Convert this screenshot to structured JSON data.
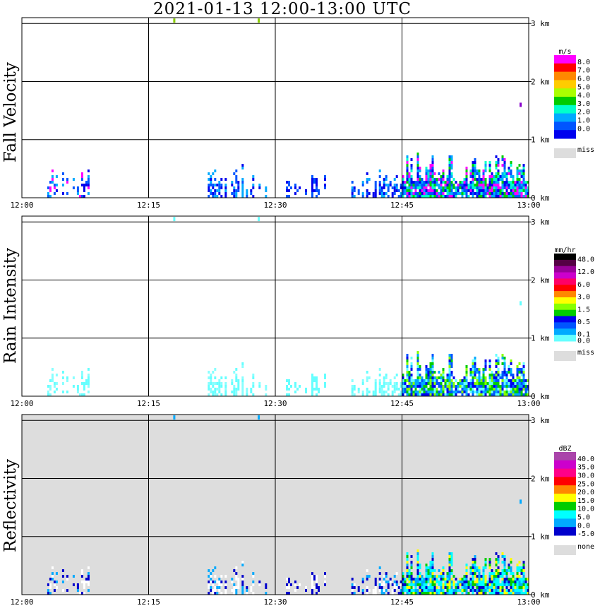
{
  "title": "2021-01-13   12:00-13:00 UTC",
  "x_ticks": [
    "12:00",
    "12:15",
    "12:30",
    "12:45",
    "13:00"
  ],
  "y_ticks": [
    "3 km",
    "2 km",
    "1 km",
    "0 km"
  ],
  "chart_data": [
    {
      "type": "heatmap",
      "ylabel": "Fall Velocity",
      "background": "#ffffff",
      "unit": "m/s",
      "colorbar": {
        "labels": [
          "8.0",
          "7.0",
          "6.0",
          "5.0",
          "4.0",
          "3.0",
          "2.0",
          "1.0",
          "0.0"
        ],
        "colors": [
          "#ff00ff",
          "#ff0000",
          "#ff8800",
          "#ffcc00",
          "#aaff00",
          "#00cc00",
          "#00ffcc",
          "#00aaff",
          "#0055ff",
          "#0000ee"
        ],
        "missing_label": "miss",
        "missing_color": "#dddddd"
      },
      "xlim": [
        "12:00",
        "13:00"
      ],
      "ylim_km": [
        0,
        3.1
      ],
      "stray_points": [
        {
          "time": "12:18",
          "height_km": 3.05,
          "color": "#88cc00"
        },
        {
          "time": "12:28",
          "height_km": 3.05,
          "color": "#88cc00"
        },
        {
          "time": "12:59",
          "height_km": 1.6,
          "color": "#8800cc"
        }
      ],
      "echo_segments": [
        {
          "start": "12:03",
          "end": "12:08",
          "top_km": 0.55,
          "palette": [
            "#0000ee",
            "#0055ff",
            "#00aaff",
            "#ff00ff"
          ]
        },
        {
          "start": "12:22",
          "end": "12:29",
          "top_km": 0.6,
          "palette": [
            "#0000ee",
            "#0055ff",
            "#00aaff"
          ]
        },
        {
          "start": "12:31",
          "end": "12:36",
          "top_km": 0.5,
          "palette": [
            "#0000ee",
            "#0055ff"
          ]
        },
        {
          "start": "12:39",
          "end": "12:45",
          "top_km": 0.55,
          "palette": [
            "#0000ee",
            "#0055ff",
            "#00aaff"
          ]
        },
        {
          "start": "12:45",
          "end": "13:00",
          "top_km": 0.8,
          "palette": [
            "#0000ee",
            "#0055ff",
            "#00aaff",
            "#00ffcc",
            "#00cc00",
            "#ff00ff"
          ]
        }
      ]
    },
    {
      "type": "heatmap",
      "ylabel": "Rain Intensity",
      "background": "#ffffff",
      "unit": "mm/hr",
      "colorbar": {
        "labels": [
          "48.0",
          "",
          "12.0",
          "",
          "6.0",
          "",
          "3.0",
          "",
          "1.5",
          "",
          "0.5",
          "",
          "0.1",
          "0.0"
        ],
        "colors": [
          "#000000",
          "#550044",
          "#990099",
          "#cc00cc",
          "#ff0066",
          "#ff0000",
          "#ff8800",
          "#ffff00",
          "#88ff00",
          "#00cc00",
          "#0000ee",
          "#0055ff",
          "#00aaff",
          "#66ffff"
        ],
        "missing_label": "miss",
        "missing_color": "#dddddd"
      },
      "xlim": [
        "12:00",
        "13:00"
      ],
      "ylim_km": [
        0,
        3.1
      ],
      "stray_points": [
        {
          "time": "12:18",
          "height_km": 3.05,
          "color": "#66ffff"
        },
        {
          "time": "12:28",
          "height_km": 3.05,
          "color": "#66ffff"
        },
        {
          "time": "12:59",
          "height_km": 1.6,
          "color": "#66ffff"
        }
      ],
      "echo_segments": [
        {
          "start": "12:03",
          "end": "12:08",
          "top_km": 0.55,
          "palette": [
            "#66ffff",
            "#88ffff"
          ]
        },
        {
          "start": "12:22",
          "end": "12:29",
          "top_km": 0.6,
          "palette": [
            "#66ffff",
            "#88ffff"
          ]
        },
        {
          "start": "12:31",
          "end": "12:36",
          "top_km": 0.5,
          "palette": [
            "#66ffff"
          ]
        },
        {
          "start": "12:39",
          "end": "12:45",
          "top_km": 0.55,
          "palette": [
            "#66ffff",
            "#88ffff"
          ]
        },
        {
          "start": "12:45",
          "end": "13:00",
          "top_km": 0.8,
          "palette": [
            "#66ffff",
            "#00aaff",
            "#0055ff",
            "#0000ee",
            "#88ff00",
            "#00cc00"
          ]
        }
      ]
    },
    {
      "type": "heatmap",
      "ylabel": "Reflectivity",
      "background": "#dddddd",
      "unit": "dBZ",
      "colorbar": {
        "labels": [
          "40.0",
          "35.0",
          "30.0",
          "25.0",
          "20.0",
          "15.0",
          "10.0",
          "5.0",
          "0.0",
          "-5.0"
        ],
        "colors": [
          "#aa44aa",
          "#cc00cc",
          "#ff0088",
          "#ff0000",
          "#ff8800",
          "#ffff00",
          "#00cc00",
          "#00ffff",
          "#00aaff",
          "#0000cc"
        ],
        "missing_label": "none",
        "missing_color": "#dddddd"
      },
      "xlim": [
        "12:00",
        "13:00"
      ],
      "ylim_km": [
        0,
        3.1
      ],
      "stray_points": [
        {
          "time": "12:18",
          "height_km": 3.05,
          "color": "#00aaff"
        },
        {
          "time": "12:28",
          "height_km": 3.05,
          "color": "#00aaff"
        },
        {
          "time": "12:59",
          "height_km": 1.6,
          "color": "#00aaff"
        }
      ],
      "echo_segments": [
        {
          "start": "12:03",
          "end": "12:08",
          "top_km": 0.55,
          "palette": [
            "#ffffff",
            "#0000cc",
            "#00aaff",
            "#ffffff"
          ]
        },
        {
          "start": "12:22",
          "end": "12:29",
          "top_km": 0.6,
          "palette": [
            "#ffffff",
            "#ffffff",
            "#0000cc",
            "#00aaff"
          ]
        },
        {
          "start": "12:31",
          "end": "12:36",
          "top_km": 0.5,
          "palette": [
            "#ffffff",
            "#0000cc"
          ]
        },
        {
          "start": "12:39",
          "end": "12:45",
          "top_km": 0.55,
          "palette": [
            "#ffffff",
            "#0000cc",
            "#00aaff"
          ]
        },
        {
          "start": "12:45",
          "end": "13:00",
          "top_km": 0.8,
          "palette": [
            "#0000cc",
            "#00aaff",
            "#00ffff",
            "#00cc00",
            "#ffff00",
            "#00ffff"
          ]
        }
      ]
    }
  ]
}
